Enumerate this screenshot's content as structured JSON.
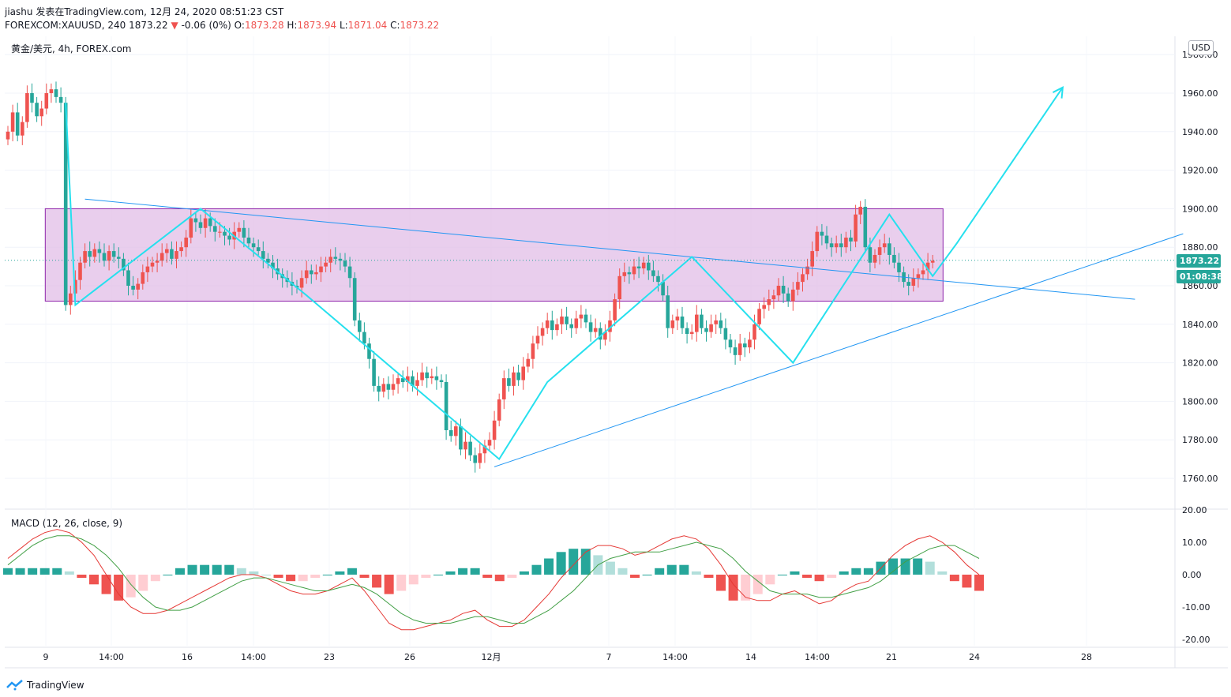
{
  "header": {
    "author": "jiashu",
    "published_text": "发表在TradingView.com,",
    "timestamp": "12月 24, 2020 08:51:23 CST",
    "symbol_line": "FOREXCOM:XAUUSD, 240",
    "last": "1873.22",
    "change": "-0.06 (0%)",
    "o_label": "O:",
    "o": "1873.28",
    "h_label": "H:",
    "h": "1873.94",
    "l_label": "L:",
    "l": "1871.04",
    "c_label": "C:",
    "c": "1873.22"
  },
  "legend": {
    "instrument": "黄金/美元, 4h, FOREX.com"
  },
  "macd_label": "MACD (12, 26, close, 9)",
  "price_axis": {
    "currency": "USD",
    "last_price": "1873.22",
    "countdown": "01:08:38"
  },
  "branding": {
    "name": "TradingView"
  },
  "colors": {
    "up": "#ef5350",
    "down": "#26a69a",
    "zigzag": "#26e0ee",
    "trend": "#2196f3",
    "box": "#e1bee7",
    "box_border": "#8e24aa",
    "macd": "#e53935",
    "signal": "#43a047"
  },
  "chart_data": {
    "type": "candlestick",
    "ylim": [
      1750,
      1985
    ],
    "yticks": [
      1760,
      1780,
      1800,
      1820,
      1840,
      1860,
      1880,
      1900,
      1920,
      1940,
      1960,
      1980
    ],
    "xticks": [
      "9",
      "14:00",
      "16",
      "14:00",
      "23",
      "26",
      "12月",
      "7",
      "14:00",
      "14",
      "14:00",
      "21",
      "24",
      "28"
    ],
    "candles_close": [
      1940,
      1950,
      1938,
      1945,
      1960,
      1955,
      1948,
      1952,
      1960,
      1962,
      1958,
      1955,
      1850,
      1856,
      1863,
      1872,
      1878,
      1875,
      1879,
      1877,
      1873,
      1878,
      1875,
      1874,
      1868,
      1860,
      1858,
      1861,
      1867,
      1870,
      1872,
      1873,
      1877,
      1879,
      1874,
      1878,
      1880,
      1885,
      1895,
      1893,
      1890,
      1895,
      1891,
      1888,
      1888,
      1886,
      1884,
      1888,
      1890,
      1885,
      1882,
      1880,
      1878,
      1874,
      1872,
      1869,
      1866,
      1864,
      1862,
      1860,
      1859,
      1864,
      1868,
      1866,
      1867,
      1870,
      1872,
      1875,
      1874,
      1873,
      1870,
      1864,
      1842,
      1836,
      1830,
      1822,
      1808,
      1805,
      1809,
      1806,
      1809,
      1812,
      1810,
      1813,
      1808,
      1811,
      1815,
      1812,
      1813,
      1811,
      1810,
      1785,
      1782,
      1787,
      1775,
      1779,
      1772,
      1768,
      1773,
      1777,
      1780,
      1790,
      1801,
      1812,
      1808,
      1815,
      1811,
      1818,
      1822,
      1830,
      1834,
      1838,
      1842,
      1837,
      1840,
      1844,
      1840,
      1838,
      1843,
      1845,
      1841,
      1836,
      1838,
      1832,
      1836,
      1842,
      1853,
      1865,
      1867,
      1866,
      1870,
      1869,
      1872,
      1868,
      1865,
      1862,
      1855,
      1838,
      1842,
      1844,
      1838,
      1835,
      1836,
      1845,
      1838,
      1836,
      1840,
      1842,
      1838,
      1832,
      1828,
      1824,
      1830,
      1828,
      1832,
      1840,
      1848,
      1850,
      1853,
      1855,
      1860,
      1856,
      1852,
      1858,
      1862,
      1866,
      1870,
      1878,
      1888,
      1886,
      1882,
      1880,
      1882,
      1880,
      1885,
      1883,
      1897,
      1901,
      1880,
      1872,
      1876,
      1880,
      1882,
      1876,
      1872,
      1867,
      1862,
      1860,
      1864,
      1866,
      1868,
      1872,
      1873
    ],
    "macd": [
      5,
      8,
      11,
      13,
      14,
      13,
      10,
      6,
      0,
      -6,
      -10,
      -12,
      -12,
      -11,
      -9,
      -7,
      -5,
      -3,
      -1,
      0,
      0,
      -1,
      -3,
      -5,
      -6,
      -6,
      -5,
      -3,
      -1,
      -5,
      -10,
      -15,
      -17,
      -17,
      -16,
      -15,
      -14,
      -12,
      -11,
      -14,
      -16,
      -16,
      -14,
      -10,
      -6,
      -1,
      3,
      7,
      9,
      9,
      8,
      6,
      7,
      9,
      11,
      12,
      11,
      8,
      3,
      -3,
      -7,
      -8,
      -8,
      -6,
      -5,
      -7,
      -9,
      -8,
      -5,
      -3,
      -2,
      2,
      6,
      9,
      11,
      12,
      10,
      7,
      3,
      0
    ],
    "signal": [
      3,
      6,
      9,
      11,
      12,
      12,
      11,
      9,
      6,
      2,
      -3,
      -7,
      -10,
      -11,
      -11,
      -10,
      -8,
      -6,
      -4,
      -2,
      -1,
      -1,
      -2,
      -3,
      -4,
      -5,
      -5,
      -4,
      -3,
      -4,
      -6,
      -9,
      -12,
      -14,
      -15,
      -15,
      -15,
      -14,
      -13,
      -13,
      -14,
      -15,
      -15,
      -13,
      -11,
      -8,
      -5,
      -1,
      3,
      5,
      6,
      7,
      7,
      7,
      8,
      9,
      10,
      9,
      8,
      5,
      1,
      -2,
      -5,
      -6,
      -6,
      -6,
      -7,
      -7,
      -6,
      -5,
      -4,
      -2,
      1,
      4,
      6,
      8,
      9,
      9,
      7,
      5
    ],
    "annotations": {
      "box": {
        "x_from_index": 3,
        "x_to_index": 196,
        "y_low": 1852,
        "y_high": 1900
      },
      "zigzag_points": [
        [
          1955,
          12
        ],
        [
          1850,
          14
        ],
        [
          1900,
          40
        ],
        [
          1855,
          62
        ],
        [
          1770,
          102
        ],
        [
          1810,
          112
        ],
        [
          1875,
          142
        ],
        [
          1820,
          163
        ],
        [
          1897,
          183
        ],
        [
          1865,
          192
        ],
        [
          1882,
          197
        ],
        [
          1963,
          219
        ]
      ],
      "trend_lines": [
        {
          "from": [
            1905,
            16
          ],
          "to": [
            1853,
            234
          ]
        },
        {
          "from": [
            1766,
            101
          ],
          "to": [
            1887,
            244
          ]
        }
      ]
    }
  }
}
